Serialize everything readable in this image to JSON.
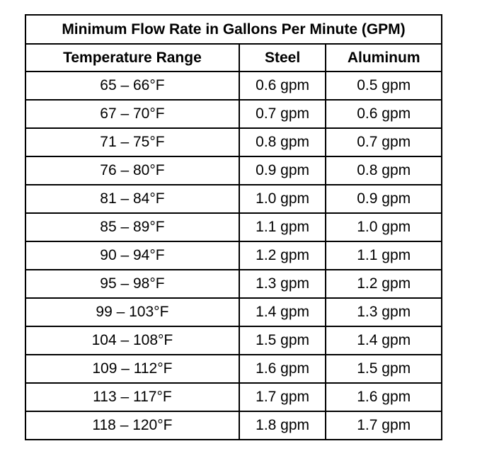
{
  "table": {
    "title": "Minimum Flow Rate in Gallons Per Minute (GPM)",
    "header": [
      "Temperature Range",
      "Steel",
      "Aluminum"
    ],
    "rows": [
      [
        "65 – 66°F",
        "0.6 gpm",
        "0.5 gpm"
      ],
      [
        "67 – 70°F",
        "0.7 gpm",
        "0.6 gpm"
      ],
      [
        "71 – 75°F",
        "0.8 gpm",
        "0.7 gpm"
      ],
      [
        "76 – 80°F",
        "0.9 gpm",
        "0.8 gpm"
      ],
      [
        "81 – 84°F",
        "1.0 gpm",
        "0.9 gpm"
      ],
      [
        "85 – 89°F",
        "1.1 gpm",
        "1.0 gpm"
      ],
      [
        "90 – 94°F",
        "1.2 gpm",
        "1.1 gpm"
      ],
      [
        "95 – 98°F",
        "1.3 gpm",
        "1.2 gpm"
      ],
      [
        "99 – 103°F",
        "1.4 gpm",
        "1.3 gpm"
      ],
      [
        "104 – 108°F",
        "1.5 gpm",
        "1.4 gpm"
      ],
      [
        "109 – 112°F",
        "1.6 gpm",
        "1.5 gpm"
      ],
      [
        "113 – 117°F",
        "1.7 gpm",
        "1.6 gpm"
      ],
      [
        "118 – 120°F",
        "1.8 gpm",
        "1.7 gpm"
      ]
    ]
  }
}
